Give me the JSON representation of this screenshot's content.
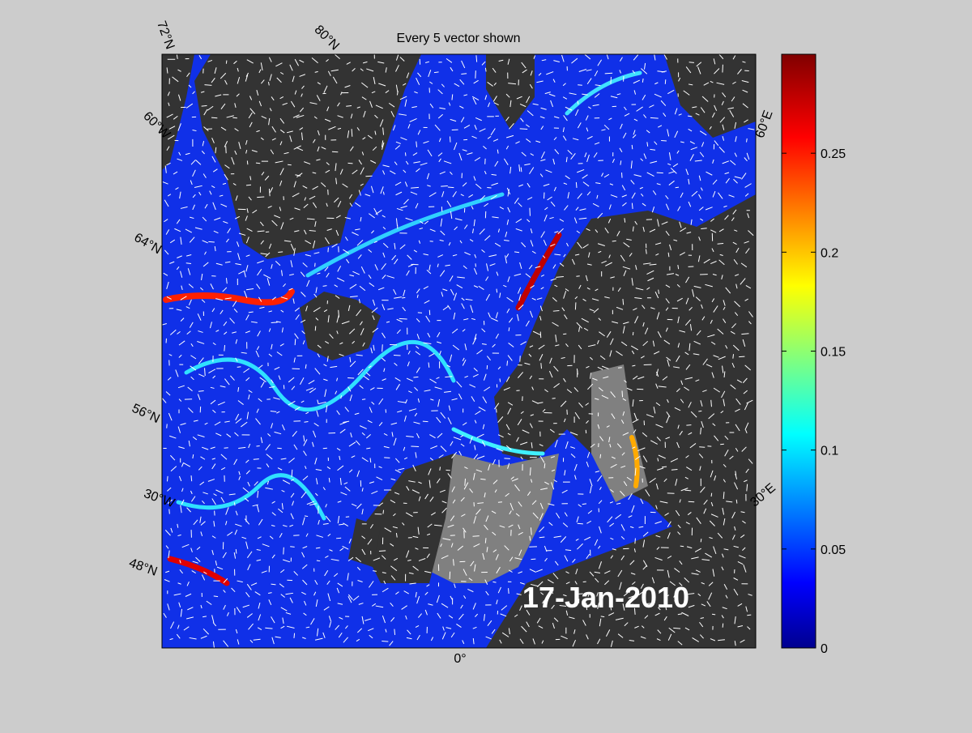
{
  "title": "Every 5 vector shown",
  "date_label": "17-Jan-2010",
  "grid_labels": [
    "72°N",
    "80°N",
    "60°W",
    "64°N",
    "56°N",
    "30°W",
    "48°N",
    "0°",
    "30°E",
    "60°E"
  ],
  "colorbar": {
    "colormap": "jet",
    "lim": [
      0,
      0.3
    ],
    "ticks": [
      0,
      0.05,
      0.1,
      0.15,
      0.2,
      0.25
    ]
  }
}
